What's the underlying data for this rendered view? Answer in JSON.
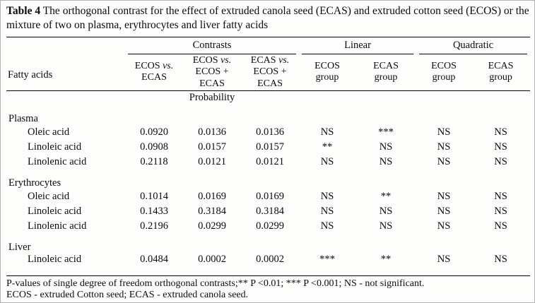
{
  "caption": {
    "label": "Table 4",
    "text": "The orthogonal contrast for the effect of extruded canola seed (ECAS) and extruded cotton seed (ECOS) or the mixture of two on plasma, erythrocytes and liver fatty acids"
  },
  "table": {
    "row_header": "Fatty acids",
    "groups": [
      {
        "label": "Contrasts"
      },
      {
        "label": "Linear"
      },
      {
        "label": "Quadratic"
      }
    ],
    "columns": [
      {
        "a": "ECOS ",
        "v": "vs.",
        "b": "ECAS"
      },
      {
        "a": "ECOS ",
        "v": "vs.",
        "b": "ECOS +",
        "c": "ECAS"
      },
      {
        "a": "ECAS ",
        "v": "vs.",
        "b": "ECOS +",
        "c": "ECAS"
      },
      {
        "a": "ECOS",
        "b": "group"
      },
      {
        "a": "ECAS",
        "b": "group"
      },
      {
        "a": "ECOS",
        "b": "group"
      },
      {
        "a": "ECAS",
        "b": "group"
      }
    ],
    "subheader": "Probability",
    "sections": [
      {
        "name": "Plasma",
        "rows": [
          {
            "label": "Oleic acid",
            "values": [
              "0.0920",
              "0.0136",
              "0.0136",
              "NS",
              "***",
              "NS",
              "NS"
            ]
          },
          {
            "label": "Linoleic acid",
            "values": [
              "0.0908",
              "0.0157",
              "0.0157",
              "**",
              "NS",
              "NS",
              "NS"
            ]
          },
          {
            "label": "Linolenic acid",
            "values": [
              "0.2118",
              "0.0121",
              "0.0121",
              "NS",
              "NS",
              "NS",
              "NS"
            ]
          }
        ]
      },
      {
        "name": "Erythrocytes",
        "rows": [
          {
            "label": "Oleic acid",
            "values": [
              "0.1014",
              "0.0169",
              "0.0169",
              "NS",
              "**",
              "NS",
              "NS"
            ]
          },
          {
            "label": "Linoleic acid",
            "values": [
              "0.1433",
              "0.3184",
              "0.3184",
              "NS",
              "NS",
              "NS",
              "NS"
            ]
          },
          {
            "label": "Linolenic acid",
            "values": [
              "0.2196",
              "0.0299",
              "0.0299",
              "NS",
              "NS",
              "NS",
              "NS"
            ]
          }
        ]
      },
      {
        "name": "Liver",
        "rows": [
          {
            "label": "Linoleic acid",
            "values": [
              "0.0484",
              "0.0002",
              "0.0002",
              "***",
              "**",
              "NS",
              "NS"
            ]
          }
        ]
      }
    ]
  },
  "footnotes": [
    "P-values of single degree of freedom orthogonal contrasts;** P <0.01; *** P <0.001; NS - not significant.",
    "ECOS -  extruded Cotton seed; ECAS - extruded canola seed."
  ]
}
